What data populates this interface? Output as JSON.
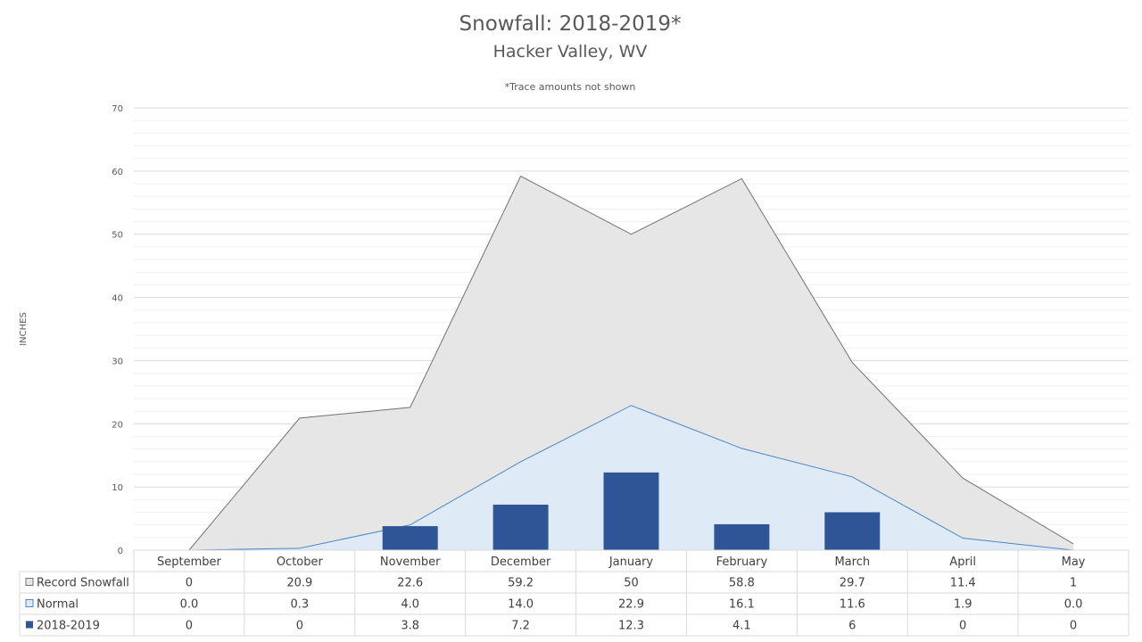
{
  "chart_data": {
    "type": "area",
    "title": "Snowfall: 2018-2019*",
    "subtitle": "Hacker Valley, WV",
    "note": "*Trace amounts not shown",
    "ylabel": "INCHES",
    "ylim": [
      0,
      70
    ],
    "yticks": [
      0,
      10,
      20,
      30,
      40,
      50,
      60,
      70
    ],
    "grid": true,
    "legend": "data-table-left",
    "categories": [
      "September",
      "October",
      "November",
      "December",
      "January",
      "February",
      "March",
      "April",
      "May"
    ],
    "series": [
      {
        "name": "Record Snowfall",
        "type": "area",
        "color": "#e7e6e6",
        "stroke": "#767171",
        "values": [
          0,
          20.9,
          22.6,
          59.2,
          50,
          58.8,
          29.7,
          11.4,
          1
        ],
        "labels": [
          "0",
          "20.9",
          "22.6",
          "59.2",
          "50",
          "58.8",
          "29.7",
          "11.4",
          "1"
        ]
      },
      {
        "name": "Normal",
        "type": "area",
        "color": "#deebf7",
        "stroke": "#4a86c8",
        "values": [
          0.0,
          0.3,
          4.0,
          14.0,
          22.9,
          16.1,
          11.6,
          1.9,
          0.0
        ],
        "labels": [
          "0.0",
          "0.3",
          "4.0",
          "14.0",
          "22.9",
          "16.1",
          "11.6",
          "1.9",
          "0.0"
        ]
      },
      {
        "name": "2018-2019",
        "type": "bar",
        "color": "#2f5597",
        "values": [
          0,
          0,
          3.8,
          7.2,
          12.3,
          4.1,
          6,
          0,
          0
        ],
        "labels": [
          "0",
          "0",
          "3.8",
          "7.2",
          "12.3",
          "4.1",
          "6",
          "0",
          "0"
        ]
      }
    ]
  }
}
